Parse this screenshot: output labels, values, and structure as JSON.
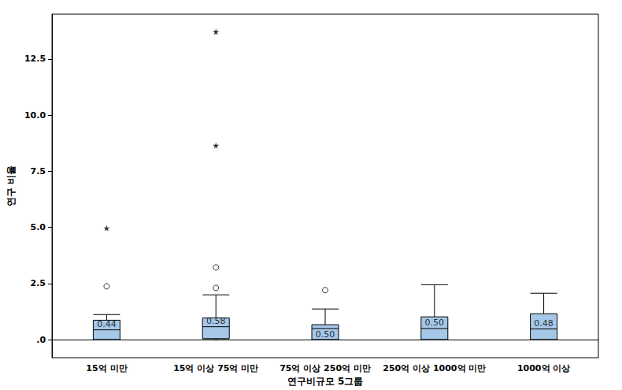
{
  "chart_data": {
    "type": "boxplot",
    "x_label": "연구비규모 5그룹",
    "y_label": "연구 비율",
    "categories": [
      "15억 미만",
      "15억 이상 75억 미만",
      "75억 이상 250억 미만",
      "250억 이상 1000억 미만",
      "1000억 이상"
    ],
    "values": [
      [
        0,
        0,
        0.44,
        0.87,
        1.12
      ],
      [
        0,
        0.05,
        0.58,
        0.97,
        2.0
      ],
      [
        0,
        0,
        0.5,
        0.67,
        1.37
      ],
      [
        0,
        0,
        0.5,
        1.02,
        2.45
      ],
      [
        0,
        0,
        0.48,
        1.16,
        2.07
      ]
    ],
    "value_labels": [
      "0.44",
      "0.58",
      "0.50",
      "0.50",
      "0.48"
    ],
    "outliers": [
      {
        "category": "15억 미만",
        "value": 2.38,
        "marker": "circle"
      },
      {
        "category": "15억 미만",
        "value": 4.97,
        "marker": "star"
      },
      {
        "category": "15억 이상 75억 미만",
        "value": 2.31,
        "marker": "circle"
      },
      {
        "category": "15억 이상 75억 미만",
        "value": 3.22,
        "marker": "circle"
      },
      {
        "category": "15억 이상 75억 미만",
        "value": 8.65,
        "marker": "star"
      },
      {
        "category": "15억 이상 75억 미만",
        "value": 13.72,
        "marker": "star"
      },
      {
        "category": "75억 이상 250억 미만",
        "value": 2.21,
        "marker": "circle"
      }
    ],
    "color": "#a6c8e8",
    "ylim": [
      -0.8,
      14.5
    ],
    "yticks": [
      {
        "value": 0,
        "label": ".0"
      },
      2.5,
      {
        "value": 5,
        "label": "5.0"
      },
      7.5,
      {
        "value": 10,
        "label": "10.0"
      },
      12.5
    ],
    "grid": false,
    "data_labels": true
  }
}
